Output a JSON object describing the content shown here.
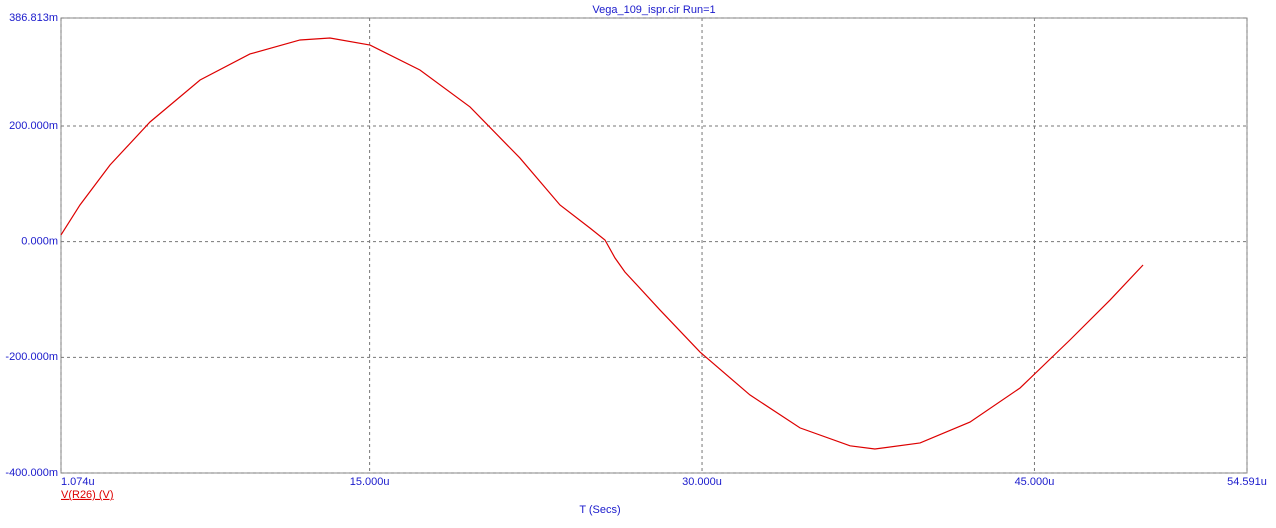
{
  "chart_data": {
    "type": "line",
    "title": "Vega_109_ispr.cir Run=1",
    "x_label": "T (Secs)",
    "x": [
      1.074,
      1.93,
      3.285,
      5.09,
      7.35,
      9.6,
      11.86,
      13.21,
      15.02,
      17.27,
      19.53,
      21.78,
      23.59,
      24.94,
      25.62,
      26.07,
      26.52,
      28.1,
      29.91,
      32.16,
      34.42,
      36.68,
      37.8,
      39.84,
      42.09,
      44.35,
      46.6,
      48.41,
      49.9
    ],
    "series": [
      {
        "name": "V(R26) (V)",
        "color": "#dd0000",
        "values": [
          11.6,
          63.5,
          132.6,
          207,
          279.6,
          324.6,
          348.8,
          352.2,
          340,
          296.9,
          233,
          144.8,
          63.5,
          23.7,
          2.9,
          -28,
          -52.4,
          -118,
          -190.8,
          -265,
          -322,
          -353,
          -358.5,
          -348,
          -312,
          -253,
          -170,
          -101,
          -40.3
        ]
      }
    ],
    "xlim": [
      1.074,
      54.591
    ],
    "xticks": [
      {
        "value": 1.074,
        "label": "1.074u"
      },
      {
        "value": 15,
        "label": "15.000u"
      },
      {
        "value": 30,
        "label": "30.000u"
      },
      {
        "value": 45,
        "label": "45.000u"
      },
      {
        "value": 54.591,
        "label": "54.591u"
      }
    ],
    "ylim": [
      -400,
      386.813
    ],
    "yticks": [
      {
        "value": -400,
        "label": "-400.000m"
      },
      {
        "value": -200,
        "label": "-200.000m"
      },
      {
        "value": 0,
        "label": "0.000m"
      },
      {
        "value": 200,
        "label": "200.000m"
      },
      {
        "value": 386.813,
        "label": "386.813m"
      }
    ],
    "grid": true
  }
}
